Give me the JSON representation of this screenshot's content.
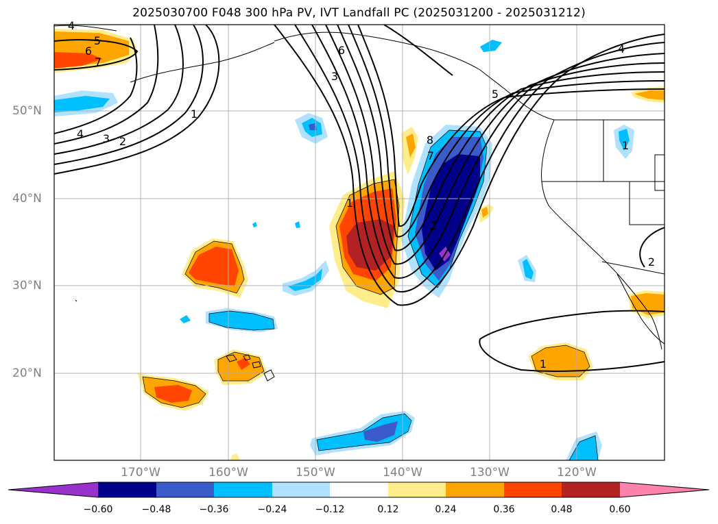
{
  "title": "2025030700 F048 300 hPa PV, IVT Landfall PC (2025031200 - 2025031212)",
  "lat_labels": [
    "50°N",
    "40°N",
    "30°N",
    "20°N"
  ],
  "lon_labels": [
    "170°W",
    "160°W",
    "150°W",
    "140°W",
    "130°W",
    "120°W"
  ],
  "colorbar": {
    "ticks": [
      "−0.60",
      "−0.48",
      "−0.36",
      "−0.24",
      "−0.12",
      "0.12",
      "0.24",
      "0.36",
      "0.48",
      "0.60"
    ],
    "colors": [
      "#9932cc",
      "#00008b",
      "#3b5bcb",
      "#00bfff",
      "#b0e2ff",
      "#ffffff",
      "#ffec8b",
      "#ffa500",
      "#ff4500",
      "#b22222",
      "#ff82ab"
    ]
  },
  "contour_labels": [
    "4",
    "5",
    "6",
    "7",
    "1",
    "4",
    "3",
    "2",
    "6",
    "3",
    "8",
    "7",
    "2",
    "1",
    "5",
    "4",
    "1",
    "1",
    "2"
  ],
  "colors": {
    "pos_yellow": "#ffec8b",
    "pos_orange": "#ffa500",
    "pos_red": "#ff4500",
    "pos_darkred": "#b22222",
    "neg_lightblue": "#b0e2ff",
    "neg_blue": "#00bfff",
    "neg_mid": "#3b5bcb",
    "neg_navy": "#00008b",
    "neg_purple": "#9932cc",
    "grid": "#b0b0b0",
    "axis_text": "#808080"
  }
}
